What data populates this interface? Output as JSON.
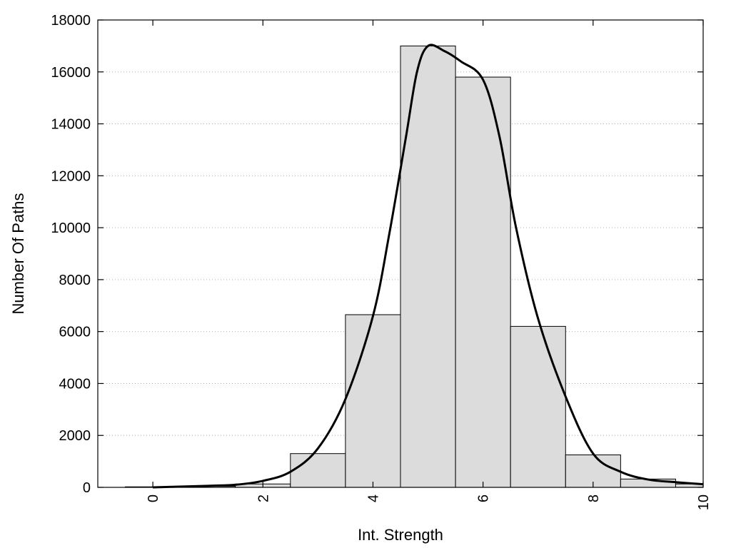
{
  "chart_data": {
    "type": "bar",
    "xlabel": "Int. Strength",
    "ylabel": "Number Of Paths",
    "xlim": [
      -1,
      10
    ],
    "ylim": [
      0,
      18000
    ],
    "x_ticks": [
      0,
      2,
      4,
      6,
      8,
      10
    ],
    "y_ticks": [
      0,
      2000,
      4000,
      6000,
      8000,
      10000,
      12000,
      14000,
      16000,
      18000
    ],
    "grid": true,
    "bar_width": 1,
    "bars": [
      {
        "x": 0,
        "value": 20
      },
      {
        "x": 1,
        "value": 40
      },
      {
        "x": 2,
        "value": 130
      },
      {
        "x": 3,
        "value": 1300
      },
      {
        "x": 4,
        "value": 6650
      },
      {
        "x": 5,
        "value": 17000
      },
      {
        "x": 6,
        "value": 15800
      },
      {
        "x": 7,
        "value": 6200
      },
      {
        "x": 8,
        "value": 1250
      },
      {
        "x": 9,
        "value": 320
      },
      {
        "x": 10,
        "value": 130
      }
    ],
    "curve": {
      "x": [
        0,
        1,
        1.5,
        2,
        2.5,
        3,
        3.5,
        4,
        4.3,
        4.6,
        4.8,
        5,
        5.3,
        5.6,
        6,
        6.3,
        6.6,
        7,
        7.5,
        8,
        8.5,
        9,
        9.5,
        10
      ],
      "y": [
        0,
        60,
        100,
        250,
        600,
        1500,
        3400,
        6600,
        9800,
        13500,
        16000,
        17000,
        16800,
        16400,
        15700,
        13500,
        10000,
        6500,
        3500,
        1300,
        600,
        300,
        200,
        120
      ]
    },
    "colors": {
      "bar_fill": "#dcdcdc",
      "bar_stroke": "#000000",
      "curve": "#000000"
    }
  }
}
